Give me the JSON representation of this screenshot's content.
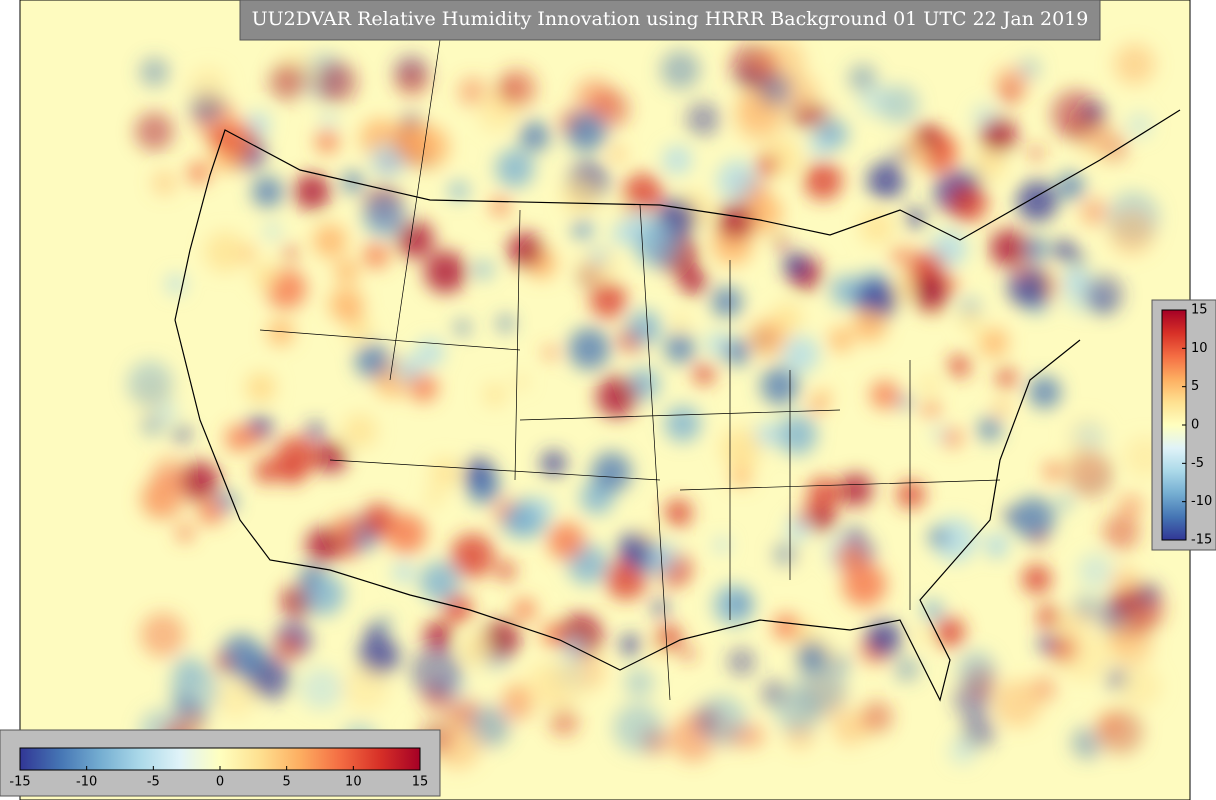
{
  "title": "UU2DVAR Relative Humidity Innovation using HRRR Background 01 UTC 22 Jan 2019",
  "colormap": [
    "#313695",
    "#4575b4",
    "#74add1",
    "#abd9e9",
    "#e0f3f8",
    "#ffffbf",
    "#fee090",
    "#fdae61",
    "#f46d43",
    "#d73027",
    "#a50026"
  ],
  "colorbars": [
    {
      "orientation": "vertical",
      "lim": [
        -15,
        15
      ],
      "ticks": [
        -15,
        -10,
        -5,
        0,
        5,
        10,
        15
      ]
    },
    {
      "orientation": "horizontal",
      "lim": [
        -15,
        15
      ],
      "ticks": [
        -15,
        -10,
        -5,
        0,
        5,
        10,
        15
      ]
    }
  ]
}
